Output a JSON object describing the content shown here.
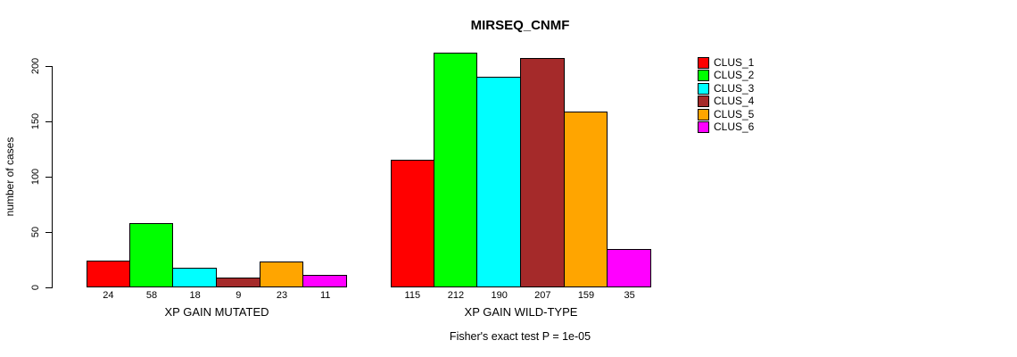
{
  "chart_data": {
    "type": "bar",
    "title": "MIRSEQ_CNMF",
    "ylabel": "number of cases",
    "ylim": [
      0,
      200
    ],
    "yticks": [
      0,
      50,
      100,
      150,
      200
    ],
    "grid": false,
    "legend_position": "top-right",
    "legend": [
      {
        "label": "CLUS_1",
        "color": "#FF0000"
      },
      {
        "label": "CLUS_2",
        "color": "#00FF00"
      },
      {
        "label": "CLUS_3",
        "color": "#00FFFF"
      },
      {
        "label": "CLUS_4",
        "color": "#A52A2A"
      },
      {
        "label": "CLUS_5",
        "color": "#FFA500"
      },
      {
        "label": "CLUS_6",
        "color": "#FF00FF"
      }
    ],
    "groups": [
      {
        "label": "XP GAIN MUTATED",
        "values": [
          24,
          58,
          18,
          9,
          23,
          11
        ]
      },
      {
        "label": "XP GAIN WILD-TYPE",
        "values": [
          115,
          212,
          190,
          207,
          159,
          35
        ]
      }
    ],
    "bar_value_labels_shown": true,
    "annotation": "Fisher's exact test P = 1e-05",
    "text_color": "#000000",
    "background_color": "#FFFFFF"
  }
}
